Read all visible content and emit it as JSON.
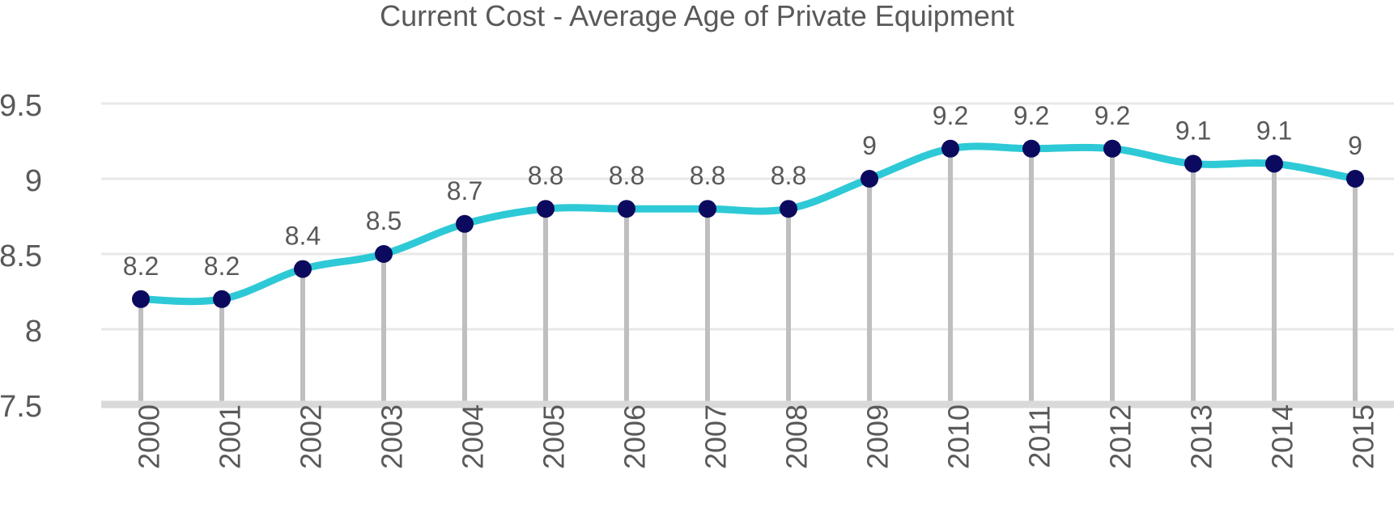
{
  "chart_data": {
    "type": "line",
    "title": "Current Cost - Average Age of Private Equipment",
    "xlabel": "",
    "ylabel": "",
    "categories": [
      "2000",
      "2001",
      "2002",
      "2003",
      "2004",
      "2005",
      "2006",
      "2007",
      "2008",
      "2009",
      "2010",
      "2011",
      "2012",
      "2013",
      "2014",
      "2015"
    ],
    "series": [
      {
        "values": [
          8.2,
          8.2,
          8.4,
          8.5,
          8.7,
          8.8,
          8.8,
          8.8,
          8.8,
          9,
          9.2,
          9.2,
          9.2,
          9.1,
          9.1,
          9
        ]
      }
    ],
    "ylim": [
      7.5,
      9.5
    ],
    "yticks": [
      "7.5",
      "8",
      "8.5",
      "9",
      "9.5"
    ],
    "data_labels": true,
    "drop_lines": true,
    "grid": true,
    "legend": "none",
    "colors": {
      "line": "#2ec9d6",
      "marker": "#0b0a5e",
      "drop_line": "#bfbfbf",
      "grid": "#e8e8e8",
      "axis": "#d9d9d9",
      "text": "#595959"
    }
  }
}
